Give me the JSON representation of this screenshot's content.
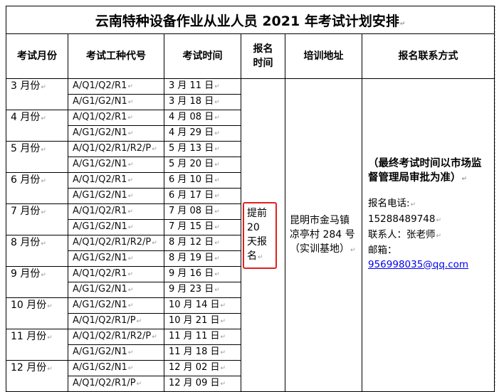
{
  "title": "云南特种设备作业从业人员 2021 年考试计划安排",
  "headers": [
    "考试月份",
    "考试工种代号",
    "考试时间",
    "报名时间",
    "培训地址",
    "报名联系方式"
  ],
  "schedule": [
    {
      "month": "3 月份",
      "exams": [
        {
          "code": "A/Q1/Q2/R1",
          "date": "3 月 11 日"
        },
        {
          "code": "A/G1/G2/N1",
          "date": "3 月 18 日"
        }
      ]
    },
    {
      "month": "4 月份",
      "exams": [
        {
          "code": "A/Q1/Q2/R1",
          "date": "4 月 08 日"
        },
        {
          "code": "A/G1/G2/N1",
          "date": "4 月 29 日"
        }
      ]
    },
    {
      "month": "5 月份",
      "exams": [
        {
          "code": "A/Q1/Q2/R1/R2/P",
          "date": "5 月 13 日"
        },
        {
          "code": "A/G1/G2/N1",
          "date": "5 月 20 日"
        }
      ]
    },
    {
      "month": "6 月份",
      "exams": [
        {
          "code": "A/Q1/Q2/R1",
          "date": "6 月 10 日"
        },
        {
          "code": "A/G1/G2/N1",
          "date": "6 月 17 日"
        }
      ]
    },
    {
      "month": "7 月份",
      "exams": [
        {
          "code": "A/Q1/Q2/R1",
          "date": "7 月 08 日"
        },
        {
          "code": "A/G1/G2/N1",
          "date": "7 月 15 日"
        }
      ]
    },
    {
      "month": "8 月份",
      "exams": [
        {
          "code": "A/Q1/Q2/R1/R2/P",
          "date": "8 月 12 日"
        },
        {
          "code": "A/G1/G2/N1",
          "date": "8 月 19 日"
        }
      ]
    },
    {
      "month": "9 月份",
      "exams": [
        {
          "code": "A/Q1/Q2/R1",
          "date": "9 月 16 日"
        },
        {
          "code": "A/G1/G2/N1",
          "date": "9 月 23 日"
        }
      ]
    },
    {
      "month": "10 月份",
      "exams": [
        {
          "code": "A/G1/G2/N1",
          "date": "10 月 14 日"
        },
        {
          "code": "A/Q1/Q2/R1/P",
          "date": "10 月 21 日"
        }
      ]
    },
    {
      "month": "11 月份",
      "exams": [
        {
          "code": "A/Q1/Q2/R1/R2/P",
          "date": "11 月 11 日"
        },
        {
          "code": "A/G1/G2/N1",
          "date": "11 月 18 日"
        }
      ]
    },
    {
      "month": "12 月份",
      "exams": [
        {
          "code": "A/G1/G2/N1",
          "date": "12 月 02 日"
        },
        {
          "code": "A/Q1/Q2/R1/P",
          "date": "12 月 09 日"
        }
      ]
    }
  ],
  "signup_time": "提前 20 天报名",
  "training_address": "昆明市金马镇凉亭村 284 号（实训基地）",
  "contact": {
    "note": "（最终考试时间以市场监督管理局审批为准）",
    "phone_label": "报名电话:",
    "phone": "15288489748",
    "person": "联系人：张老师",
    "email_label": "邮箱：",
    "email": "956998035@qq.com"
  },
  "colors": {
    "highlight_box": "#e02020",
    "link": "#0000ee"
  }
}
